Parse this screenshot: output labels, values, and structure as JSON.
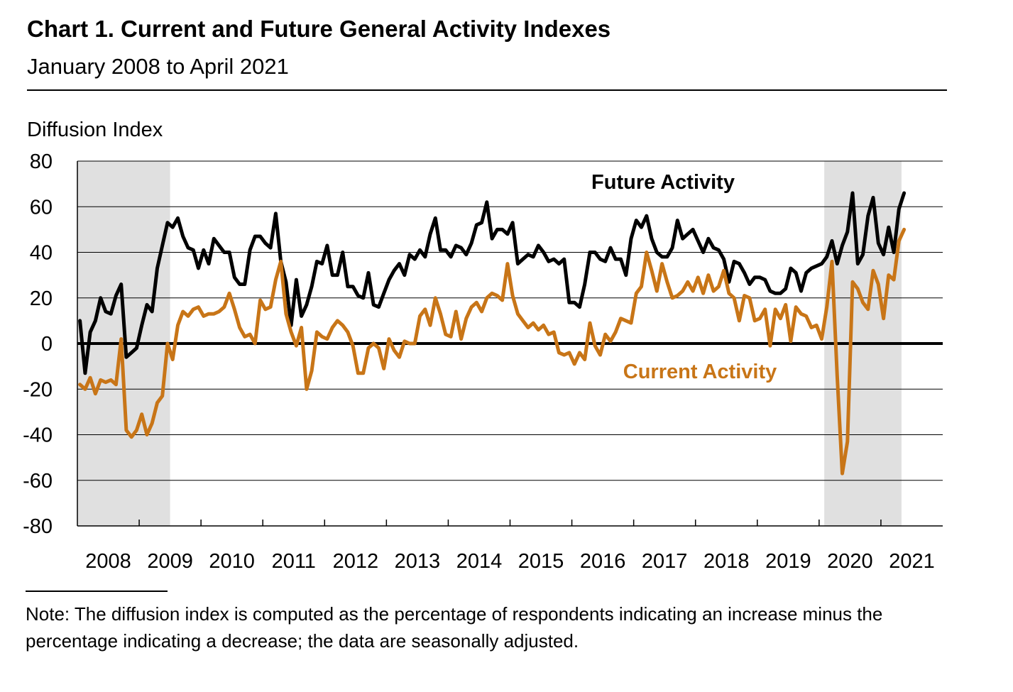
{
  "header": {
    "title": "Chart 1. Current and Future General Activity Indexes",
    "subtitle": "January 2008 to April 2021"
  },
  "note": "Note: The diffusion index is computed as the percentage of respondents indicating an increase minus the percentage indicating a decrease; the data are seasonally adjusted.",
  "chart_data": {
    "type": "line",
    "ylabel": "Diffusion Index",
    "ylim": [
      -80,
      80
    ],
    "yticks": [
      "80",
      "60",
      "40",
      "20",
      "0",
      "-20",
      "-40",
      "-60",
      "-80"
    ],
    "xlabels": [
      "2008",
      "2009",
      "2010",
      "2011",
      "2012",
      "2013",
      "2014",
      "2015",
      "2016",
      "2017",
      "2018",
      "2019",
      "2020",
      "2021"
    ],
    "x_start": "2008-01",
    "x_end": "2021-12",
    "zero_line": true,
    "grid": "horizontal",
    "shaded_periods": [
      {
        "start": "2008-01",
        "end": "2009-06"
      },
      {
        "start": "2020-02",
        "end": "2021-04"
      }
    ],
    "colors": {
      "current": "#C87517",
      "future": "#000000",
      "shade": "#E0E0E0",
      "grid": "#000000"
    },
    "annotations": [
      {
        "text": "Future Activity",
        "series": "future"
      },
      {
        "text": "Current Activity",
        "series": "current"
      }
    ],
    "series": [
      {
        "name": "Future Activity",
        "key": "future",
        "start": "2008-01",
        "values": [
          10,
          -13,
          5,
          10,
          20,
          14,
          13,
          21,
          26,
          -6,
          -4,
          -2,
          8,
          17,
          14,
          33,
          43,
          53,
          51,
          55,
          47,
          42,
          41,
          33,
          41,
          35,
          46,
          43,
          40,
          40,
          29,
          26,
          26,
          41,
          47,
          47,
          44,
          42,
          57,
          36,
          27,
          8,
          28,
          12,
          17,
          25,
          36,
          35,
          43,
          30,
          30,
          40,
          25,
          25,
          21,
          20,
          31,
          17,
          16,
          22,
          28,
          32,
          35,
          30,
          39,
          37,
          41,
          38,
          48,
          55,
          41,
          41,
          38,
          43,
          42,
          39,
          44,
          52,
          53,
          62,
          46,
          50,
          50,
          48,
          53,
          35,
          37,
          39,
          38,
          43,
          40,
          36,
          37,
          35,
          37,
          18,
          18,
          16,
          26,
          40,
          40,
          37,
          36,
          42,
          37,
          37,
          30,
          46,
          54,
          51,
          56,
          46,
          40,
          38,
          38,
          42,
          54,
          46,
          48,
          50,
          45,
          40,
          46,
          42,
          41,
          37,
          27,
          36,
          35,
          31,
          26,
          29,
          29,
          28,
          23,
          22,
          22,
          24,
          33,
          31,
          23,
          31,
          33,
          34,
          35,
          38,
          45,
          35,
          43,
          49,
          66,
          35,
          39,
          56,
          64,
          44,
          39,
          51,
          40,
          59,
          66
        ]
      },
      {
        "name": "Current Activity",
        "key": "current",
        "start": "2008-01",
        "values": [
          -18,
          -20,
          -15,
          -22,
          -16,
          -17,
          -16,
          -18,
          2,
          -38,
          -41,
          -38,
          -31,
          -40,
          -35,
          -26,
          -23,
          0,
          -7,
          8,
          14,
          12,
          15,
          16,
          12,
          13,
          13,
          14,
          16,
          22,
          15,
          7,
          3,
          4,
          0,
          19,
          15,
          16,
          28,
          36,
          13,
          5,
          -1,
          7,
          -20,
          -12,
          5,
          3,
          2,
          7,
          10,
          8,
          5,
          -1,
          -13,
          -13,
          -2,
          0,
          -2,
          -11,
          2,
          -3,
          -6,
          1,
          0,
          0,
          12,
          15,
          8,
          20,
          13,
          4,
          3,
          14,
          2,
          11,
          16,
          18,
          14,
          20,
          22,
          21,
          19,
          35,
          21,
          13,
          10,
          7,
          9,
          6,
          8,
          4,
          5,
          -4,
          -5,
          -4,
          -9,
          -4,
          -7,
          9,
          -1,
          -5,
          4,
          1,
          5,
          11,
          10,
          9,
          22,
          25,
          40,
          32,
          23,
          35,
          27,
          20,
          21,
          23,
          27,
          23,
          29,
          22,
          30,
          23,
          25,
          32,
          22,
          20,
          10,
          21,
          20,
          10,
          11,
          15,
          -1,
          15,
          11,
          17,
          1,
          16,
          13,
          12,
          7,
          8,
          2,
          16,
          36,
          -14,
          -57,
          -43,
          27,
          24,
          18,
          15,
          32,
          26,
          11,
          30,
          28,
          45,
          50
        ]
      }
    ]
  }
}
